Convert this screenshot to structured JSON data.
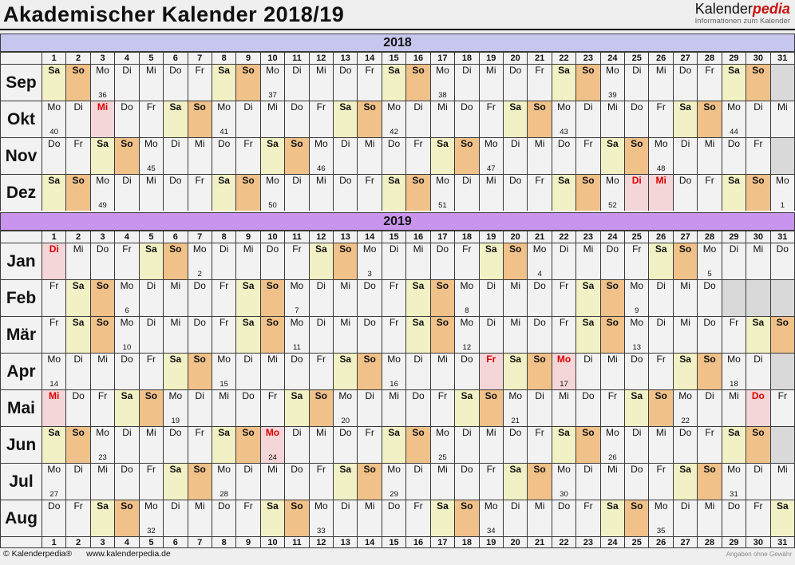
{
  "title": "Akademischer Kalender 2018/19",
  "logo": {
    "brand_black": "Kalender",
    "brand_red": "pedia",
    "subtitle": "Informationen zum Kalender"
  },
  "footer": {
    "copyright": "© Kalenderpedia®",
    "url": "www.kalenderpedia.de",
    "disclaimer": "Angaben ohne Gewähr"
  },
  "colors": {
    "line": "#3a3a3a",
    "page_bg": "#efefef",
    "cell_bg": "#f2f2f2",
    "header_bg": "#f2f2f2",
    "sat_bg": "#f1f1c5",
    "sun_bg": "#f0c189",
    "holiday_bg": "#f4d5d8",
    "holiday_text": "#dd0000",
    "off_bg": "#d9d9d9",
    "band_2018": "#c6c6ef",
    "band_2019": "#c894ee"
  },
  "weekday_names": [
    "Mo",
    "Di",
    "Mi",
    "Do",
    "Fr",
    "Sa",
    "So"
  ],
  "day_column_headers": [
    1,
    2,
    3,
    4,
    5,
    6,
    7,
    8,
    9,
    10,
    11,
    12,
    13,
    14,
    15,
    16,
    17,
    18,
    19,
    20,
    21,
    22,
    23,
    24,
    25,
    26,
    27,
    28,
    29,
    30,
    31
  ],
  "years": [
    {
      "year": "2018",
      "band_color": "#c6c6ef",
      "months": [
        {
          "name": "Sep",
          "num_days": 30,
          "first_weekday": "Sa",
          "weeks": {
            "3": 36,
            "10": 37,
            "17": 38,
            "24": 39
          },
          "holidays": []
        },
        {
          "name": "Okt",
          "num_days": 31,
          "first_weekday": "Mo",
          "weeks": {
            "1": 40,
            "8": 41,
            "15": 42,
            "22": 43,
            "29": 44
          },
          "holidays": [
            3
          ]
        },
        {
          "name": "Nov",
          "num_days": 30,
          "first_weekday": "Do",
          "weeks": {
            "5": 45,
            "12": 46,
            "19": 47,
            "26": 48
          },
          "holidays": []
        },
        {
          "name": "Dez",
          "num_days": 31,
          "first_weekday": "Sa",
          "weeks": {
            "3": 49,
            "10": 50,
            "17": 51,
            "24": 52,
            "31": 1
          },
          "holidays": [
            25,
            26
          ]
        }
      ]
    },
    {
      "year": "2019",
      "band_color": "#c894ee",
      "months": [
        {
          "name": "Jan",
          "num_days": 31,
          "first_weekday": "Di",
          "weeks": {
            "7": 2,
            "14": 3,
            "21": 4,
            "28": 5
          },
          "holidays": [
            1
          ]
        },
        {
          "name": "Feb",
          "num_days": 28,
          "first_weekday": "Fr",
          "weeks": {
            "4": 6,
            "11": 7,
            "18": 8,
            "25": 9
          },
          "holidays": []
        },
        {
          "name": "Mär",
          "num_days": 31,
          "first_weekday": "Fr",
          "weeks": {
            "4": 10,
            "11": 11,
            "18": 12,
            "25": 13
          },
          "holidays": []
        },
        {
          "name": "Apr",
          "num_days": 30,
          "first_weekday": "Mo",
          "weeks": {
            "1": 14,
            "8": 15,
            "15": 16,
            "22": 17,
            "29": 18
          },
          "holidays": [
            19,
            22
          ]
        },
        {
          "name": "Mai",
          "num_days": 31,
          "first_weekday": "Mi",
          "weeks": {
            "6": 19,
            "13": 20,
            "20": 21,
            "27": 22
          },
          "holidays": [
            1,
            30
          ]
        },
        {
          "name": "Jun",
          "num_days": 30,
          "first_weekday": "Sa",
          "weeks": {
            "3": 23,
            "10": 24,
            "17": 25,
            "24": 26
          },
          "holidays": [
            10
          ]
        },
        {
          "name": "Jul",
          "num_days": 31,
          "first_weekday": "Mo",
          "weeks": {
            "1": 27,
            "8": 28,
            "15": 29,
            "22": 30,
            "29": 31
          },
          "holidays": []
        },
        {
          "name": "Aug",
          "num_days": 31,
          "first_weekday": "Do",
          "weeks": {
            "5": 32,
            "12": 33,
            "19": 34,
            "26": 35
          },
          "holidays": []
        }
      ]
    }
  ]
}
